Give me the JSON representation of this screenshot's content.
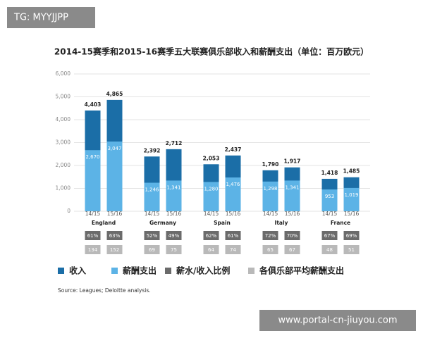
{
  "chart_data": {
    "type": "bar",
    "title": "2014-15赛季和2015-16赛季五大联赛俱乐部收入和薪酬支出（单位：百万欧元）",
    "groups": [
      "England",
      "Germany",
      "Spain",
      "Italy",
      "France"
    ],
    "categories": [
      "14/15",
      "15/16",
      "14/15",
      "15/16",
      "14/15",
      "15/16",
      "14/15",
      "15/16",
      "14/15",
      "15/16"
    ],
    "series": [
      {
        "name": "收入",
        "color": "#1b6ea7",
        "values": [
          4403,
          4865,
          2392,
          2712,
          2053,
          2437,
          1790,
          1917,
          1418,
          1485
        ],
        "value_labels": [
          "4,403",
          "4,865",
          "2,392",
          "2,712",
          "2,053",
          "2,437",
          "1,790",
          "1,917",
          "1,418",
          "1,485"
        ]
      },
      {
        "name": "薪酬支出",
        "color": "#5cb3e6",
        "values": [
          2670,
          3047,
          1246,
          1341,
          1280,
          1476,
          1298,
          1341,
          953,
          1019
        ],
        "value_labels": [
          "2,670",
          "3,047",
          "1,246",
          "1,341",
          "1,280",
          "1,476",
          "1,298",
          "1,341",
          "953",
          "1,019"
        ]
      },
      {
        "name": "薪水/收入比例",
        "color": "#6b6b6b",
        "values": [
          61,
          63,
          52,
          49,
          62,
          61,
          72,
          70,
          67,
          69
        ],
        "value_labels": [
          "61%",
          "63%",
          "52%",
          "49%",
          "62%",
          "61%",
          "72%",
          "70%",
          "67%",
          "69%"
        ]
      },
      {
        "name": "各俱乐部平均薪酬支出",
        "color": "#b9b9b9",
        "values": [
          134,
          152,
          69,
          75,
          64,
          74,
          65,
          67,
          48,
          51
        ]
      }
    ],
    "ylim": [
      0,
      6000
    ],
    "yticks": [
      0,
      {
        "value": 1000,
        "label": "1,000"
      },
      {
        "value": 2000,
        "label": "2,000"
      },
      {
        "value": 3000,
        "label": "3,000"
      },
      {
        "value": 4000,
        "label": "4,000"
      },
      {
        "value": 5000,
        "label": "5,000"
      },
      {
        "value": 6000,
        "label": "6,000"
      }
    ],
    "grid": true,
    "source": "Source: Leagues; Deloitte analysis."
  },
  "watermarks": [
    "TG: MYYJJPP",
    "www.portal-cn-jiuyou.com"
  ]
}
